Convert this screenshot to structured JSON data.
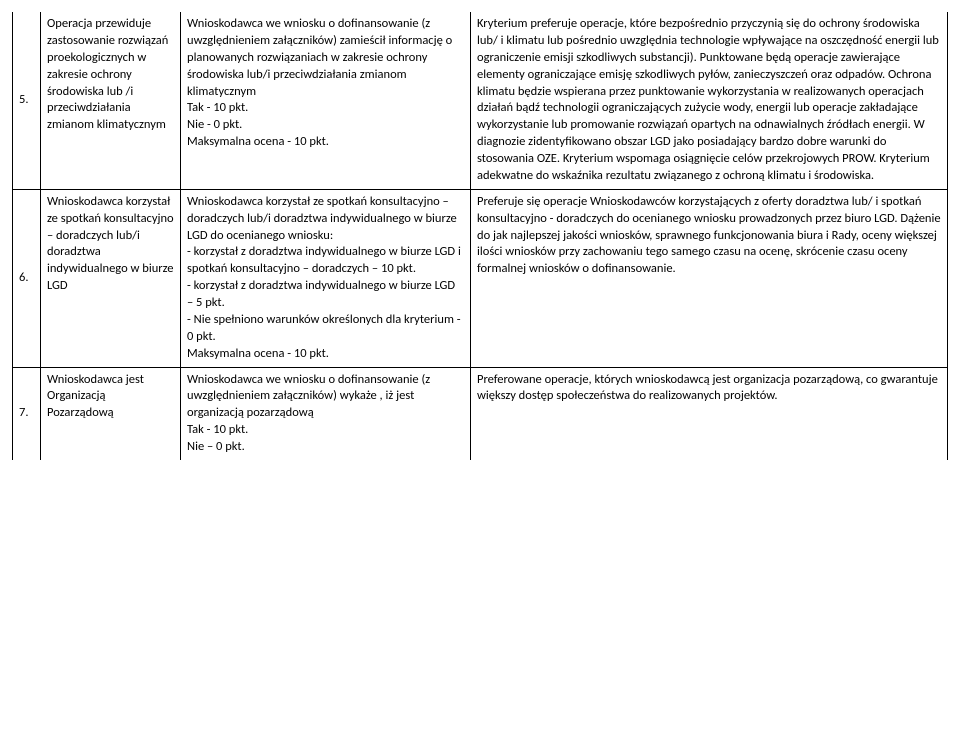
{
  "rows": [
    {
      "num": "5.",
      "colA": "Operacja przewiduje zastosowanie rozwiązań proekologicznych  w zakresie  ochrony środowiska lub /i przeciwdziałania zmianom klimatycznym",
      "colB": "Wnioskodawca we wniosku o dofinansowanie (z uwzględnieniem załączników) zamieścił informację o planowanych rozwiązaniach w zakresie ochrony środowiska lub/i przeciwdziałania zmianom klimatycznym\nTak - 10 pkt.\nNie -  0 pkt.\nMaksymalna ocena  - 10 pkt.",
      "colC": "Kryterium preferuje operacje, które bezpośrednio przyczynią się do ochrony środowiska lub/ i klimatu lub pośrednio uwzględnia technologie wpływające na oszczędność energii lub ograniczenie emisji szkodliwych substancji). Punktowane będą operacje zawierające elementy  ograniczające emisję szkodliwych pyłów, zanieczyszczeń oraz odpadów.  Ochrona klimatu będzie wspierana przez punktowanie wykorzystania w realizowanych operacjach działań bądź technologii ograniczających zużycie wody, energii lub operacje zakładające wykorzystanie  lub promowanie rozwiązań opartych na odnawialnych źródłach energii. W diagnozie zidentyfikowano obszar LGD jako posiadający bardzo dobre  warunki do stosowania OZE. Kryterium wspomaga osiągnięcie celów przekrojowych PROW. Kryterium adekwatne do wskaźnika rezultatu związanego z ochroną klimatu i środowiska."
    },
    {
      "num": "6.",
      "colA": "Wnioskodawca korzystał ze spotkań konsultacyjno – doradczych lub/i doradztwa indywidualnego w biurze LGD",
      "colB": "Wnioskodawca korzystał ze spotkań konsultacyjno – doradczych lub/i doradztwa indywidualnego w biurze LGD do ocenianego wniosku:\n- korzystał z doradztwa indywidualnego w biurze LGD  i  spotkań konsultacyjno – doradczych – 10 pkt.\n- korzystał z doradztwa indywidualnego w biurze LGD – 5 pkt.\n-  Nie spełniono warunków określonych dla kryterium - 0 pkt.\nMaksymalna ocena  - 10 pkt.",
      "colC": "Preferuje się operacje Wnioskodawców korzystających z oferty doradztwa lub/ i spotkań konsultacyjno - doradczych do ocenianego wniosku prowadzonych przez biuro LGD. Dążenie do jak najlepszej jakości wniosków, sprawnego funkcjonowania biura i Rady, oceny większej ilości wniosków przy zachowaniu tego samego czasu na ocenę, skrócenie czasu oceny formalnej wniosków o dofinansowanie."
    },
    {
      "num": "7.",
      "colA": "Wnioskodawca jest Organizacją Pozarządową",
      "colB": "Wnioskodawca we wniosku o dofinansowanie (z uwzględnieniem załączników)  wykaże , iż jest organizacją pozarządową\nTak - 10 pkt.\nNie – 0 pkt.",
      "colC": "Preferowane operacje, których wnioskodawcą jest organizacja pozarządową, co gwarantuje większy dostęp społeczeństwa do realizowanych projektów."
    }
  ]
}
